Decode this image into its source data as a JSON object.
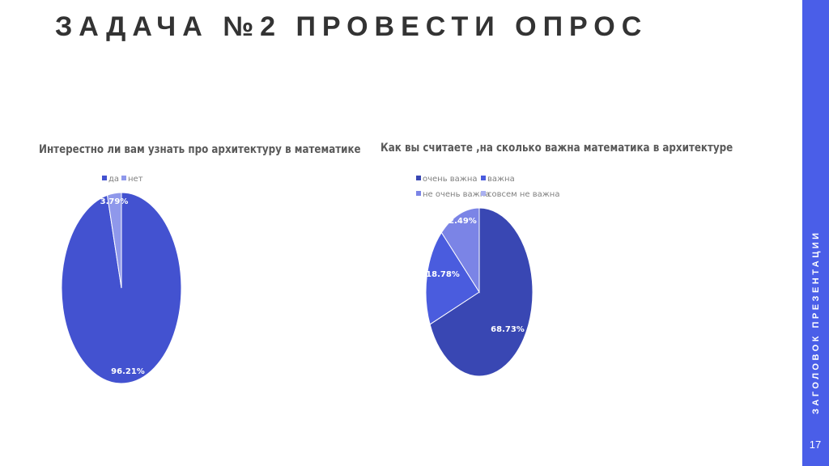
{
  "slide": {
    "title": "ЗАДАЧА №2 ПРОВЕСТИ ОПРОС",
    "side_caption": "ЗАГОЛОВОК ПРЕЗЕНТАЦИИ",
    "page_number": "17",
    "accent_color": "#4a5ee8"
  },
  "chart_data": [
    {
      "type": "pie",
      "title": "Интерестно ли вам узнать про архитектуру в математике",
      "categories": [
        "да",
        "нет"
      ],
      "values": [
        96.21,
        3.79
      ],
      "labels": [
        "96.21%",
        "3.79%"
      ],
      "colors": [
        "#4352d0",
        "#8f98eb"
      ],
      "legend": "top"
    },
    {
      "type": "pie",
      "title": "Как вы считаете ,на сколько важна математика в архитектуре",
      "categories": [
        "очень важна",
        "важна",
        "не очень важна",
        "совсем не важна"
      ],
      "values": [
        68.73,
        18.78,
        12.49,
        0
      ],
      "labels": [
        "68.73%",
        "18.78%",
        "12.49%"
      ],
      "colors": [
        "#3947b3",
        "#4a5cde",
        "#7b84e6",
        "#a9b0f0"
      ],
      "legend": "top"
    }
  ]
}
